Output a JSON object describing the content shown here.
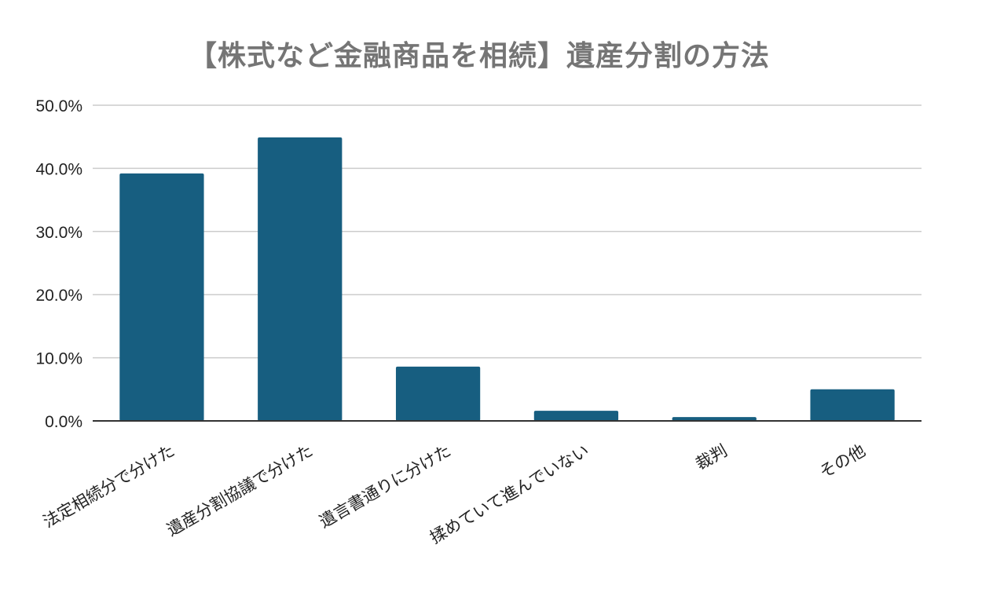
{
  "chart_data": {
    "type": "bar",
    "title": "【株式など金融商品を相続】遺産分割の方法",
    "xlabel": "",
    "ylabel": "",
    "categories": [
      "法定相続分で分けた",
      "遺産分割協議で分けた",
      "遺言書通りに分けた",
      "揉めていて進んでいない",
      "裁判",
      "その他"
    ],
    "values": [
      39.2,
      44.9,
      8.6,
      1.6,
      0.6,
      5.0
    ],
    "ylim": [
      0,
      50
    ],
    "yticks": [
      0,
      10,
      20,
      30,
      40,
      50
    ],
    "ytick_labels": [
      "0.0%",
      "10.0%",
      "20.0%",
      "30.0%",
      "40.0%",
      "50.0%"
    ],
    "grid": true,
    "legend": "none",
    "colors": {
      "bar": "#175e80",
      "grid": "#cccccc",
      "axis": "#333333",
      "title": "#757575"
    }
  }
}
